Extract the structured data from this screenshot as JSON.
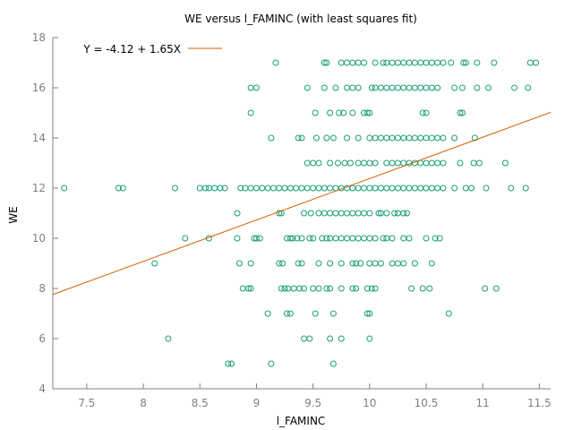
{
  "chart_data": {
    "type": "scatter",
    "title": "WE versus l_FAMINC (with least squares fit)",
    "xlabel": "l_FAMINC",
    "ylabel": "WE",
    "xlim": [
      7.2,
      11.6
    ],
    "ylim": [
      4,
      18
    ],
    "xticks": [
      7.5,
      8,
      8.5,
      9,
      9.5,
      10,
      10.5,
      11,
      11.5
    ],
    "xtick_labels": [
      "7.5",
      "8",
      "8.5",
      "9",
      "9.5",
      "10",
      "10.5",
      "11",
      "11.5"
    ],
    "yticks": [
      4,
      6,
      8,
      10,
      12,
      14,
      16,
      18
    ],
    "ytick_labels": [
      "4",
      "6",
      "8",
      "10",
      "12",
      "14",
      "16",
      "18"
    ],
    "grid": false,
    "legend_position": "top-left",
    "fit": {
      "label": "Y = -4.12 + 1.65X",
      "intercept": -4.12,
      "slope": 1.65,
      "color": "#d55e00"
    },
    "point_color": "#1a9e77",
    "points": [
      [
        7.3,
        12
      ],
      [
        7.78,
        12
      ],
      [
        7.82,
        12
      ],
      [
        8.28,
        12
      ],
      [
        8.5,
        12
      ],
      [
        8.55,
        12
      ],
      [
        8.58,
        12
      ],
      [
        8.63,
        12
      ],
      [
        8.68,
        12
      ],
      [
        8.72,
        12
      ],
      [
        8.86,
        12
      ],
      [
        8.9,
        12
      ],
      [
        8.95,
        12
      ],
      [
        9.0,
        12
      ],
      [
        9.05,
        12
      ],
      [
        9.1,
        12
      ],
      [
        9.15,
        12
      ],
      [
        9.2,
        12
      ],
      [
        9.25,
        12
      ],
      [
        9.3,
        12
      ],
      [
        9.35,
        12
      ],
      [
        9.4,
        12
      ],
      [
        9.45,
        12
      ],
      [
        9.5,
        12
      ],
      [
        9.55,
        12
      ],
      [
        9.6,
        12
      ],
      [
        9.65,
        12
      ],
      [
        9.7,
        12
      ],
      [
        9.75,
        12
      ],
      [
        9.8,
        12
      ],
      [
        9.85,
        12
      ],
      [
        9.9,
        12
      ],
      [
        9.95,
        12
      ],
      [
        10.0,
        12
      ],
      [
        10.05,
        12
      ],
      [
        10.1,
        12
      ],
      [
        10.15,
        12
      ],
      [
        10.2,
        12
      ],
      [
        10.25,
        12
      ],
      [
        10.3,
        12
      ],
      [
        10.35,
        12
      ],
      [
        10.4,
        12
      ],
      [
        10.45,
        12
      ],
      [
        10.5,
        12
      ],
      [
        10.55,
        12
      ],
      [
        10.6,
        12
      ],
      [
        10.65,
        12
      ],
      [
        10.75,
        12
      ],
      [
        10.85,
        12
      ],
      [
        10.9,
        12
      ],
      [
        11.03,
        12
      ],
      [
        11.25,
        12
      ],
      [
        11.38,
        12
      ],
      [
        9.17,
        17
      ],
      [
        9.6,
        17
      ],
      [
        9.62,
        17
      ],
      [
        9.75,
        17
      ],
      [
        9.8,
        17
      ],
      [
        9.85,
        17
      ],
      [
        9.9,
        17
      ],
      [
        9.95,
        17
      ],
      [
        10.05,
        17
      ],
      [
        10.12,
        17
      ],
      [
        10.15,
        17
      ],
      [
        10.2,
        17
      ],
      [
        10.25,
        17
      ],
      [
        10.3,
        17
      ],
      [
        10.35,
        17
      ],
      [
        10.4,
        17
      ],
      [
        10.45,
        17
      ],
      [
        10.5,
        17
      ],
      [
        10.55,
        17
      ],
      [
        10.6,
        17
      ],
      [
        10.65,
        17
      ],
      [
        10.72,
        17
      ],
      [
        10.83,
        17
      ],
      [
        10.85,
        17
      ],
      [
        10.95,
        17
      ],
      [
        11.1,
        17
      ],
      [
        11.42,
        17
      ],
      [
        11.47,
        17
      ],
      [
        8.95,
        16
      ],
      [
        9.0,
        16
      ],
      [
        9.45,
        16
      ],
      [
        9.6,
        16
      ],
      [
        9.7,
        16
      ],
      [
        9.8,
        16
      ],
      [
        9.85,
        16
      ],
      [
        9.9,
        16
      ],
      [
        10.02,
        16
      ],
      [
        10.05,
        16
      ],
      [
        10.1,
        16
      ],
      [
        10.15,
        16
      ],
      [
        10.2,
        16
      ],
      [
        10.25,
        16
      ],
      [
        10.3,
        16
      ],
      [
        10.35,
        16
      ],
      [
        10.4,
        16
      ],
      [
        10.45,
        16
      ],
      [
        10.5,
        16
      ],
      [
        10.55,
        16
      ],
      [
        10.6,
        16
      ],
      [
        10.75,
        16
      ],
      [
        10.82,
        16
      ],
      [
        10.95,
        16
      ],
      [
        11.05,
        16
      ],
      [
        11.28,
        16
      ],
      [
        11.4,
        16
      ],
      [
        8.95,
        15
      ],
      [
        9.52,
        15
      ],
      [
        9.65,
        15
      ],
      [
        9.73,
        15
      ],
      [
        9.77,
        15
      ],
      [
        9.85,
        15
      ],
      [
        9.95,
        15
      ],
      [
        9.98,
        15
      ],
      [
        10.0,
        15
      ],
      [
        10.47,
        15
      ],
      [
        10.5,
        15
      ],
      [
        10.8,
        15
      ],
      [
        10.82,
        15
      ],
      [
        9.13,
        14
      ],
      [
        9.37,
        14
      ],
      [
        9.4,
        14
      ],
      [
        9.53,
        14
      ],
      [
        9.62,
        14
      ],
      [
        9.68,
        14
      ],
      [
        9.8,
        14
      ],
      [
        9.9,
        14
      ],
      [
        10.0,
        14
      ],
      [
        10.05,
        14
      ],
      [
        10.1,
        14
      ],
      [
        10.15,
        14
      ],
      [
        10.2,
        14
      ],
      [
        10.25,
        14
      ],
      [
        10.3,
        14
      ],
      [
        10.35,
        14
      ],
      [
        10.4,
        14
      ],
      [
        10.45,
        14
      ],
      [
        10.5,
        14
      ],
      [
        10.55,
        14
      ],
      [
        10.6,
        14
      ],
      [
        10.65,
        14
      ],
      [
        10.75,
        14
      ],
      [
        10.93,
        14
      ],
      [
        9.45,
        13
      ],
      [
        9.5,
        13
      ],
      [
        9.55,
        13
      ],
      [
        9.65,
        13
      ],
      [
        9.72,
        13
      ],
      [
        9.78,
        13
      ],
      [
        9.83,
        13
      ],
      [
        9.9,
        13
      ],
      [
        9.95,
        13
      ],
      [
        10.0,
        13
      ],
      [
        10.05,
        13
      ],
      [
        10.15,
        13
      ],
      [
        10.2,
        13
      ],
      [
        10.25,
        13
      ],
      [
        10.3,
        13
      ],
      [
        10.35,
        13
      ],
      [
        10.4,
        13
      ],
      [
        10.45,
        13
      ],
      [
        10.5,
        13
      ],
      [
        10.55,
        13
      ],
      [
        10.6,
        13
      ],
      [
        10.65,
        13
      ],
      [
        10.8,
        13
      ],
      [
        10.92,
        13
      ],
      [
        10.97,
        13
      ],
      [
        11.2,
        13
      ],
      [
        8.83,
        11
      ],
      [
        9.2,
        11
      ],
      [
        9.22,
        11
      ],
      [
        9.42,
        11
      ],
      [
        9.48,
        11
      ],
      [
        9.55,
        11
      ],
      [
        9.6,
        11
      ],
      [
        9.65,
        11
      ],
      [
        9.7,
        11
      ],
      [
        9.75,
        11
      ],
      [
        9.8,
        11
      ],
      [
        9.85,
        11
      ],
      [
        9.9,
        11
      ],
      [
        9.95,
        11
      ],
      [
        10.0,
        11
      ],
      [
        10.08,
        11
      ],
      [
        10.1,
        11
      ],
      [
        10.15,
        11
      ],
      [
        10.22,
        11
      ],
      [
        10.25,
        11
      ],
      [
        10.3,
        11
      ],
      [
        10.33,
        11
      ],
      [
        8.37,
        10
      ],
      [
        8.58,
        10
      ],
      [
        8.83,
        10
      ],
      [
        8.98,
        10
      ],
      [
        9.0,
        10
      ],
      [
        9.03,
        10
      ],
      [
        9.27,
        10
      ],
      [
        9.3,
        10
      ],
      [
        9.32,
        10
      ],
      [
        9.36,
        10
      ],
      [
        9.4,
        10
      ],
      [
        9.47,
        10
      ],
      [
        9.5,
        10
      ],
      [
        9.58,
        10
      ],
      [
        9.62,
        10
      ],
      [
        9.65,
        10
      ],
      [
        9.7,
        10
      ],
      [
        9.75,
        10
      ],
      [
        9.8,
        10
      ],
      [
        9.85,
        10
      ],
      [
        9.9,
        10
      ],
      [
        9.95,
        10
      ],
      [
        10.0,
        10
      ],
      [
        10.05,
        10
      ],
      [
        10.12,
        10
      ],
      [
        10.15,
        10
      ],
      [
        10.2,
        10
      ],
      [
        10.3,
        10
      ],
      [
        10.35,
        10
      ],
      [
        10.5,
        10
      ],
      [
        10.58,
        10
      ],
      [
        10.62,
        10
      ],
      [
        8.1,
        9
      ],
      [
        8.85,
        9
      ],
      [
        8.95,
        9
      ],
      [
        9.2,
        9
      ],
      [
        9.23,
        9
      ],
      [
        9.37,
        9
      ],
      [
        9.4,
        9
      ],
      [
        9.55,
        9
      ],
      [
        9.65,
        9
      ],
      [
        9.75,
        9
      ],
      [
        9.85,
        9
      ],
      [
        9.88,
        9
      ],
      [
        9.92,
        9
      ],
      [
        10.0,
        9
      ],
      [
        10.05,
        9
      ],
      [
        10.1,
        9
      ],
      [
        10.2,
        9
      ],
      [
        10.25,
        9
      ],
      [
        10.3,
        9
      ],
      [
        10.4,
        9
      ],
      [
        10.55,
        9
      ],
      [
        8.88,
        8
      ],
      [
        8.93,
        8
      ],
      [
        8.95,
        8
      ],
      [
        9.22,
        8
      ],
      [
        9.25,
        8
      ],
      [
        9.28,
        8
      ],
      [
        9.33,
        8
      ],
      [
        9.38,
        8
      ],
      [
        9.42,
        8
      ],
      [
        9.5,
        8
      ],
      [
        9.55,
        8
      ],
      [
        9.62,
        8
      ],
      [
        9.65,
        8
      ],
      [
        9.75,
        8
      ],
      [
        9.85,
        8
      ],
      [
        9.88,
        8
      ],
      [
        9.98,
        8
      ],
      [
        10.02,
        8
      ],
      [
        10.05,
        8
      ],
      [
        10.37,
        8
      ],
      [
        10.47,
        8
      ],
      [
        10.53,
        8
      ],
      [
        11.02,
        8
      ],
      [
        11.12,
        8
      ],
      [
        9.1,
        7
      ],
      [
        9.27,
        7
      ],
      [
        9.3,
        7
      ],
      [
        9.52,
        7
      ],
      [
        9.68,
        7
      ],
      [
        9.98,
        7
      ],
      [
        10.0,
        7
      ],
      [
        10.7,
        7
      ],
      [
        8.22,
        6
      ],
      [
        9.42,
        6
      ],
      [
        9.47,
        6
      ],
      [
        9.65,
        6
      ],
      [
        9.75,
        6
      ],
      [
        10.0,
        6
      ],
      [
        8.75,
        5
      ],
      [
        8.78,
        5
      ],
      [
        9.13,
        5
      ],
      [
        9.68,
        5
      ]
    ]
  }
}
